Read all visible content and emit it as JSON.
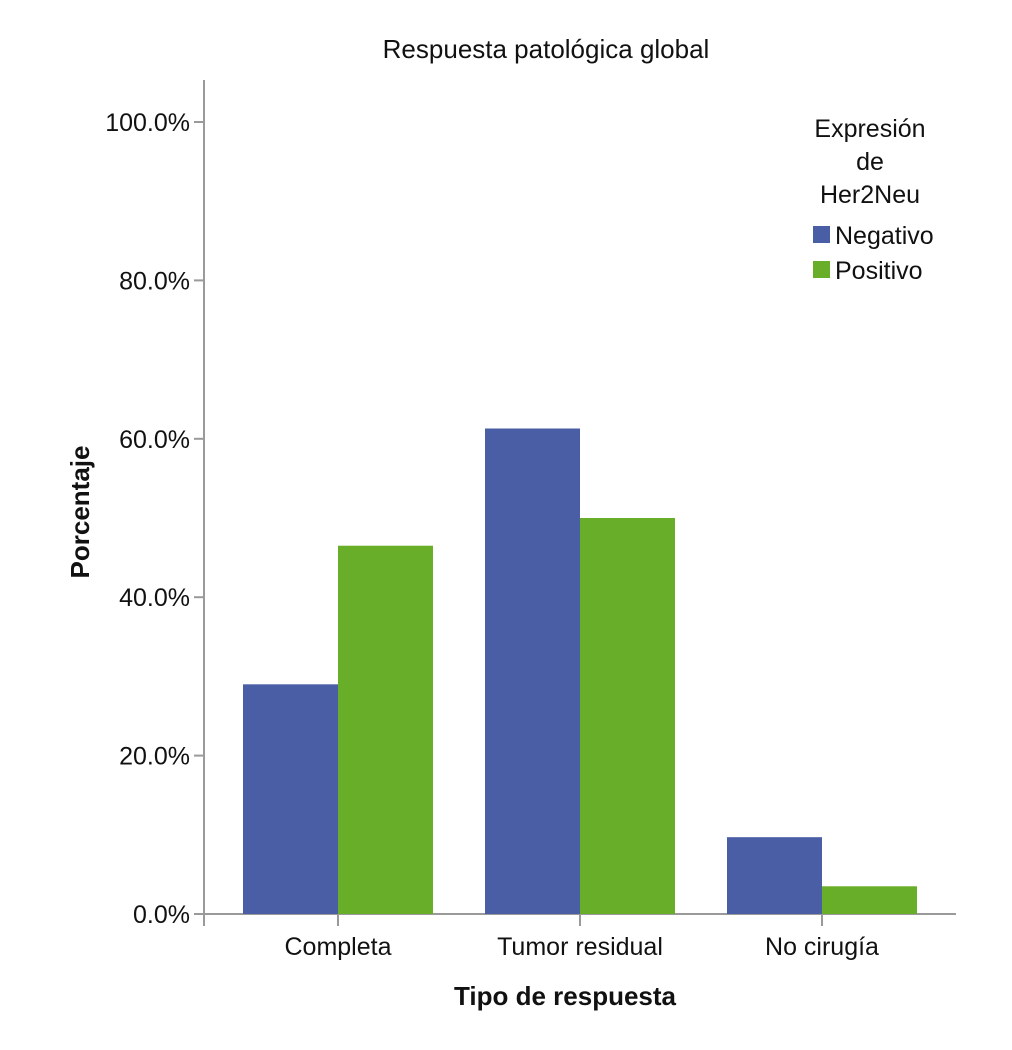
{
  "chart_data": {
    "type": "bar",
    "title": "Respuesta patológica global",
    "xlabel": "Tipo de respuesta",
    "ylabel": "Porcentaje",
    "categories": [
      "Completa",
      "Tumor residual",
      "No cirugía"
    ],
    "series": [
      {
        "name": "Negativo",
        "color": "#4a5ea5",
        "values": [
          29.0,
          61.3,
          9.7
        ]
      },
      {
        "name": "Positivo",
        "color": "#68ae28",
        "values": [
          46.5,
          50.0,
          3.5
        ]
      }
    ],
    "ylim": [
      0,
      100
    ],
    "yticks": [
      0,
      20,
      40,
      60,
      80,
      100
    ],
    "ytick_labels": [
      "0.0%",
      "20.0%",
      "40.0%",
      "60.0%",
      "80.0%",
      "100.0%"
    ],
    "legend_title_lines": [
      "Expresión",
      "de",
      "Her2Neu"
    ],
    "legend_position": "top-right",
    "grid": false
  }
}
